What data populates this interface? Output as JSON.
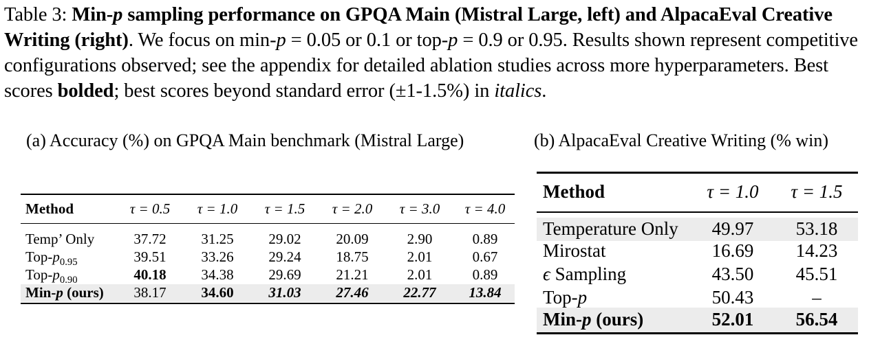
{
  "caption": {
    "label": "Table 3: ",
    "title_a": "Min-",
    "title_p": "p",
    "title_b": " sampling performance on GPQA Main (Mistral Large, left) and AlpacaEval Creative Writing (right)",
    "t1": ". We focus on min-",
    "p1": "p",
    "t2": " = 0.05 or 0.1 or top-",
    "p2": "p",
    "t3": " = 0.9 or 0.95. Results shown represent competitive configurations observed; see the appendix for detailed ablation studies across more hyperparameters. Best scores ",
    "bolded": "bolded",
    "t4": "; best scores beyond standard error (±1-1.5%) in ",
    "italics": "italics",
    "t5": "."
  },
  "table_a": {
    "subcaption": "(a) Accuracy (%) on GPQA Main benchmark (Mistral Large)",
    "method_header": "Method",
    "columns": [
      "τ = 0.5",
      "τ = 1.0",
      "τ = 1.5",
      "τ = 2.0",
      "τ = 3.0",
      "τ = 4.0"
    ],
    "rows": [
      {
        "name_pre": "Temp’ Only",
        "name_it": "",
        "name_sub": "",
        "name_post": "",
        "values": [
          "37.72",
          "31.25",
          "29.02",
          "20.09",
          "2.90",
          "0.89"
        ],
        "styles": [
          "",
          "",
          "",
          "",
          "",
          ""
        ]
      },
      {
        "name_pre": "Top-",
        "name_it": "p",
        "name_sub": "0.95",
        "name_post": "",
        "values": [
          "39.51",
          "33.26",
          "29.24",
          "18.75",
          "2.01",
          "0.67"
        ],
        "styles": [
          "",
          "",
          "",
          "",
          "",
          ""
        ]
      },
      {
        "name_pre": "Top-",
        "name_it": "p",
        "name_sub": "0.90",
        "name_post": "",
        "values": [
          "40.18",
          "34.38",
          "29.69",
          "21.21",
          "2.01",
          "0.89"
        ],
        "styles": [
          "bd",
          "",
          "",
          "",
          "",
          ""
        ]
      },
      {
        "name_pre": "Min-",
        "name_it": "p",
        "name_sub": "",
        "name_post": " (ours)",
        "values": [
          "38.17",
          "34.60",
          "31.03",
          "27.46",
          "22.77",
          "13.84"
        ],
        "styles": [
          "",
          "bd",
          "bi",
          "bi",
          "bi",
          "bi"
        ]
      }
    ]
  },
  "table_b": {
    "subcaption": "(b) AlpacaEval Creative Writing (% win)",
    "method_header": "Method",
    "columns": [
      "τ = 1.0",
      "τ = 1.5"
    ],
    "rows": [
      {
        "name_pre": "Temperature Only",
        "name_it": "",
        "name_post": "",
        "values": [
          "49.97",
          "53.18"
        ],
        "bold": false
      },
      {
        "name_pre": "Mirostat",
        "name_it": "",
        "name_post": "",
        "values": [
          "16.69",
          "14.23"
        ],
        "bold": false
      },
      {
        "name_pre": "",
        "name_it": "ϵ",
        "name_post": " Sampling",
        "values": [
          "43.50",
          "45.51"
        ],
        "bold": false
      },
      {
        "name_pre": "Top-",
        "name_it": "p",
        "name_post": "",
        "values": [
          "50.43",
          "–"
        ],
        "bold": false
      },
      {
        "name_pre": "Min-",
        "name_it": "p",
        "name_post": " (ours)",
        "values": [
          "52.01",
          "56.54"
        ],
        "bold": true
      }
    ]
  }
}
